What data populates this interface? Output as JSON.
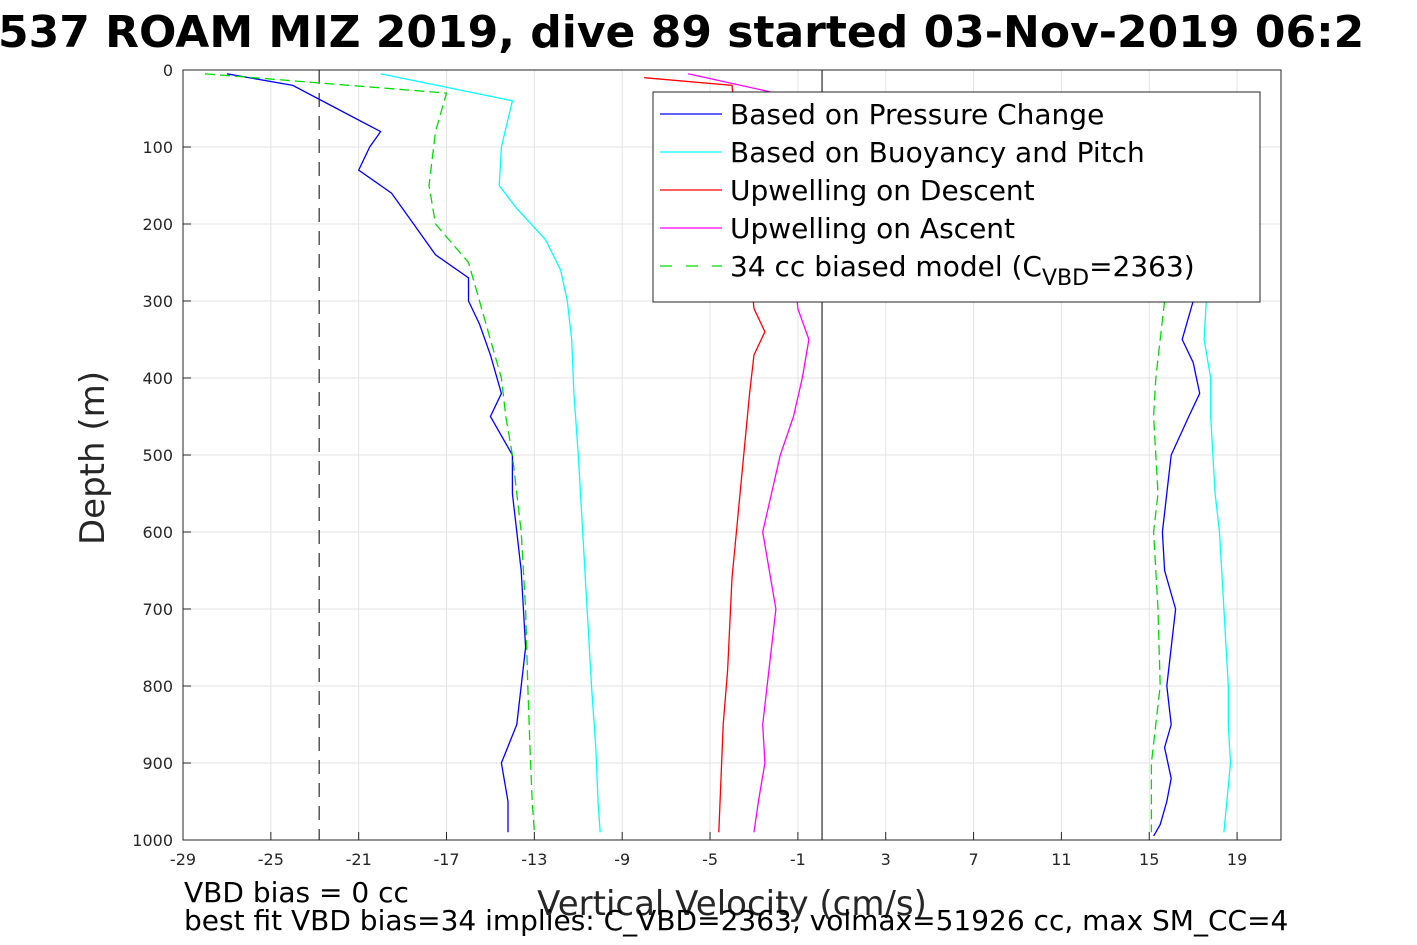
{
  "chart_data": {
    "type": "line",
    "title": "537 ROAM MIZ 2019, dive 89 started 03-Nov-2019 06:2",
    "xlabel": "Vertical Velocity (cm/s)",
    "ylabel": "Depth (m)",
    "xlim": [
      -29,
      21
    ],
    "ylim": [
      0,
      1000
    ],
    "y_reversed": true,
    "grid": true,
    "x_ticks": [
      -29,
      -25,
      -21,
      -17,
      -13,
      -9,
      -5,
      -1,
      3,
      7,
      11,
      15,
      19
    ],
    "y_ticks": [
      0,
      100,
      200,
      300,
      400,
      500,
      600,
      700,
      800,
      900,
      1000
    ],
    "legend_position": "top-right",
    "reference_lines": [
      {
        "name": "vbd-bias-line",
        "x": -22.8,
        "style": "dashed",
        "color": "#000000"
      },
      {
        "name": "zero-line",
        "x": 0.1,
        "style": "solid",
        "color": "#000000"
      }
    ],
    "series": [
      {
        "name": "Based on Pressure Change",
        "color": "#0000ff",
        "style": "solid",
        "x": [
          -27,
          -24,
          -22,
          -20,
          -20.5,
          -21,
          -19.5,
          -18.5,
          -17.5,
          -16,
          -16,
          -15.5,
          -15,
          -14.5,
          -15,
          -14,
          -14,
          -13.8,
          -13.6,
          -13.5,
          -13.4,
          -13.6,
          -13.8,
          -14.5,
          -14.2,
          -14.2
        ],
        "y": [
          5,
          20,
          50,
          80,
          100,
          130,
          160,
          200,
          240,
          270,
          300,
          330,
          370,
          420,
          450,
          500,
          550,
          600,
          650,
          700,
          750,
          800,
          850,
          900,
          950,
          990
        ],
        "x2": [
          17,
          16.5,
          17,
          17.3,
          16.8,
          16,
          15.8,
          15.6,
          15.7,
          16.2,
          16,
          15.8,
          16,
          15.7,
          16,
          15.8,
          15.5,
          15.2
        ],
        "y2": [
          300,
          350,
          380,
          420,
          450,
          500,
          550,
          600,
          650,
          700,
          750,
          800,
          850,
          880,
          920,
          950,
          980,
          995
        ]
      },
      {
        "name": "Based on Buoyancy and Pitch",
        "color": "#00ffff",
        "style": "solid",
        "x": [
          -20,
          -14,
          -14.5,
          -14.6,
          -13.8,
          -12.5,
          -11.8,
          -11.5,
          -11.3,
          -11.2,
          -11,
          -10.8,
          -10.6,
          -10.4,
          -10.2,
          -10.1,
          -10
        ],
        "y": [
          5,
          40,
          100,
          150,
          180,
          220,
          260,
          300,
          350,
          420,
          500,
          600,
          700,
          800,
          880,
          950,
          990
        ],
        "x2": [
          17.6,
          17.5,
          17.8,
          17.8,
          17.9,
          18,
          18.2,
          18.3,
          18.4,
          18.5,
          18.6,
          18.6,
          18.7,
          18.4
        ],
        "y2": [
          300,
          350,
          400,
          450,
          500,
          550,
          600,
          650,
          700,
          750,
          800,
          850,
          900,
          990
        ]
      },
      {
        "name": "Upwelling on Descent",
        "color": "#ff0000",
        "style": "solid",
        "x": [
          -8,
          -4,
          -3,
          -2.5,
          -3,
          -3.2,
          -3.4,
          -3.6,
          -3.8,
          -4,
          -4.1,
          -4.2,
          -4.4,
          -4.5,
          -4.6
        ],
        "y": [
          10,
          20,
          310,
          340,
          370,
          420,
          480,
          540,
          600,
          660,
          720,
          780,
          850,
          920,
          990
        ],
        "x2": [],
        "y2": []
      },
      {
        "name": "Upwelling on Ascent",
        "color": "#ff00ff",
        "style": "solid",
        "x": [
          -6,
          -2,
          -1,
          -0.5,
          -0.8,
          -1.2,
          -1.8,
          -2.2,
          -2.6,
          -2.3,
          -2,
          -2.2,
          -2.4,
          -2.6,
          -2.5,
          -2.8,
          -3
        ],
        "y": [
          5,
          30,
          310,
          350,
          400,
          450,
          500,
          550,
          600,
          650,
          700,
          750,
          800,
          850,
          900,
          950,
          990
        ],
        "x2": [],
        "y2": []
      },
      {
        "name": "34 cc biased model (C",
        "color": "#00dd00",
        "style": "dashed",
        "x": [
          -28,
          -17,
          -17.5,
          -17.8,
          -17.5,
          -16,
          -15.5,
          -15,
          -14.5,
          -14.3,
          -14,
          -13.6,
          -13.4,
          -13.3,
          -13.2,
          -13.1,
          -13
        ],
        "y": [
          5,
          30,
          80,
          150,
          200,
          250,
          300,
          350,
          400,
          450,
          500,
          600,
          700,
          800,
          880,
          950,
          990
        ],
        "x2": [
          15.7,
          15.5,
          15.3,
          15.2,
          15.3,
          15.4,
          15.2,
          15.3,
          15.4,
          15.5,
          15.3,
          15.1,
          15.1
        ],
        "y2": [
          300,
          350,
          400,
          450,
          500,
          550,
          600,
          650,
          700,
          800,
          850,
          900,
          990
        ]
      }
    ],
    "legend_model_subscript": "VBD",
    "legend_model_suffix": "=2363)",
    "footer_lines": [
      "VBD bias = 0 cc",
      "best fit VBD bias=34 implies: C_VBD=2363, volmax=51926 cc, max SM_CC=4"
    ]
  }
}
